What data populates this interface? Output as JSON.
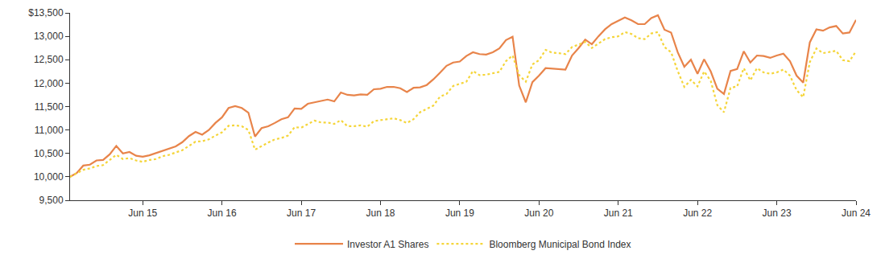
{
  "chart_data": {
    "type": "line",
    "categories": [
      null,
      null,
      null,
      null,
      null,
      null,
      null,
      null,
      null,
      null,
      null,
      "Jun 15",
      null,
      null,
      null,
      null,
      null,
      null,
      null,
      null,
      null,
      null,
      null,
      "Jun 16",
      null,
      null,
      null,
      null,
      null,
      null,
      null,
      null,
      null,
      null,
      null,
      "Jun 17",
      null,
      null,
      null,
      null,
      null,
      null,
      null,
      null,
      null,
      null,
      null,
      "Jun 18",
      null,
      null,
      null,
      null,
      null,
      null,
      null,
      null,
      null,
      null,
      null,
      "Jun 19",
      null,
      null,
      null,
      null,
      null,
      null,
      null,
      null,
      null,
      null,
      null,
      "Jun 20",
      null,
      null,
      null,
      null,
      null,
      null,
      null,
      null,
      null,
      null,
      null,
      "Jun 21",
      null,
      null,
      null,
      null,
      null,
      null,
      null,
      null,
      null,
      null,
      null,
      "Jun 22",
      null,
      null,
      null,
      null,
      null,
      null,
      null,
      null,
      null,
      null,
      null,
      "Jun 23",
      null,
      null,
      null,
      null,
      null,
      null,
      null,
      null,
      null,
      null,
      null,
      "Jun 24"
    ],
    "series": [
      {
        "name": "Investor A1 Shares",
        "color": "#E8844A",
        "line_style": "solid",
        "values": [
          10000,
          10080,
          10240,
          10260,
          10350,
          10360,
          10480,
          10660,
          10500,
          10530,
          10450,
          10430,
          10460,
          10510,
          10550,
          10600,
          10650,
          10740,
          10870,
          10960,
          10900,
          11000,
          11150,
          11270,
          11470,
          11510,
          11470,
          11370,
          10860,
          11040,
          11080,
          11150,
          11230,
          11270,
          11460,
          11450,
          11560,
          11590,
          11620,
          11650,
          11610,
          11800,
          11750,
          11740,
          11760,
          11750,
          11870,
          11880,
          11920,
          11920,
          11890,
          11810,
          11900,
          11910,
          11960,
          12080,
          12220,
          12370,
          12440,
          12460,
          12580,
          12660,
          12620,
          12610,
          12660,
          12740,
          12920,
          12990,
          11950,
          11590,
          12020,
          12160,
          12320,
          12310,
          12300,
          12290,
          12590,
          12750,
          12930,
          12830,
          13000,
          13150,
          13260,
          13330,
          13400,
          13340,
          13260,
          13260,
          13390,
          13450,
          13140,
          13080,
          12660,
          12350,
          12500,
          12200,
          12510,
          12250,
          11880,
          11770,
          12260,
          12300,
          12680,
          12440,
          12590,
          12580,
          12540,
          12590,
          12630,
          12470,
          12160,
          12010,
          12870,
          13150,
          13120,
          13190,
          13220,
          13060,
          13080,
          13350
        ]
      },
      {
        "name": "Bloomberg Municipal Bond Index",
        "color": "#F5D53A",
        "line_style": "dotted",
        "values": [
          10000,
          10080,
          10150,
          10180,
          10230,
          10250,
          10360,
          10470,
          10380,
          10400,
          10350,
          10320,
          10360,
          10380,
          10440,
          10470,
          10520,
          10570,
          10660,
          10750,
          10760,
          10800,
          10880,
          10950,
          11090,
          11100,
          11080,
          11000,
          10580,
          10660,
          10730,
          10800,
          10830,
          10880,
          11060,
          11050,
          11130,
          11200,
          11160,
          11160,
          11130,
          11210,
          11080,
          11080,
          11100,
          11070,
          11190,
          11210,
          11240,
          11250,
          11210,
          11150,
          11230,
          11380,
          11450,
          11520,
          11710,
          11770,
          11940,
          11990,
          12030,
          12260,
          12170,
          12180,
          12210,
          12240,
          12470,
          12590,
          12170,
          12030,
          12400,
          12490,
          12710,
          12650,
          12640,
          12620,
          12770,
          12820,
          12880,
          12750,
          12840,
          12940,
          12980,
          13000,
          13090,
          13050,
          12960,
          12940,
          13060,
          13090,
          12770,
          12660,
          12260,
          11920,
          12070,
          11930,
          12250,
          12050,
          11530,
          11380,
          11900,
          11930,
          12320,
          12060,
          12320,
          12230,
          12200,
          12230,
          12290,
          12160,
          11850,
          11700,
          12450,
          12740,
          12640,
          12660,
          12690,
          12490,
          12470,
          12680
        ]
      }
    ],
    "ylim": [
      9500,
      13500
    ],
    "yticks": [
      {
        "value": 9500,
        "label": "9,500"
      },
      {
        "value": 10000,
        "label": "10,000"
      },
      {
        "value": 10500,
        "label": "10,500"
      },
      {
        "value": 11000,
        "label": "11,000"
      },
      {
        "value": 11500,
        "label": "11,500"
      },
      {
        "value": 12000,
        "label": "12,000"
      },
      {
        "value": 12500,
        "label": "12,500"
      },
      {
        "value": 13000,
        "label": "13,000"
      },
      {
        "value": 13500,
        "label": "$13,500"
      }
    ],
    "grid": false,
    "legend": "bottom"
  }
}
